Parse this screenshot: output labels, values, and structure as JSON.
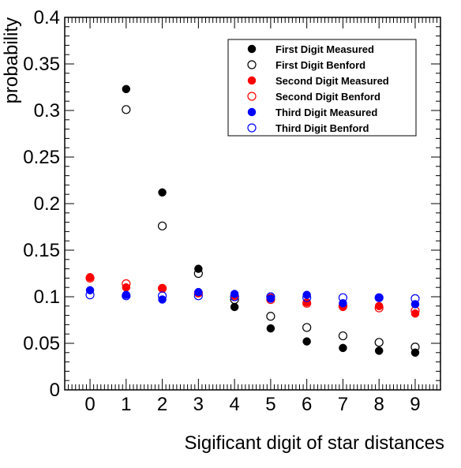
{
  "chart_data": {
    "type": "scatter",
    "title": "",
    "xlabel": "Sigificant digit of star distances",
    "ylabel": "probability",
    "xlim": [
      -0.7,
      9.7
    ],
    "ylim": [
      0,
      0.4
    ],
    "x_ticks": [
      0,
      1,
      2,
      3,
      4,
      5,
      6,
      7,
      8,
      9
    ],
    "y_ticks": [
      0,
      0.05,
      0.1,
      0.15,
      0.2,
      0.25,
      0.3,
      0.35,
      0.4
    ],
    "y_tick_labels": [
      "0",
      "0.05",
      "0.1",
      "0.15",
      "0.2",
      "0.25",
      "0.3",
      "0.35",
      "0.4"
    ],
    "grid": false,
    "legend_position": "top-right",
    "series": [
      {
        "name": "First Digit Measured",
        "color": "#000000",
        "filled": true,
        "x": [
          1,
          2,
          3,
          4,
          5,
          6,
          7,
          8,
          9
        ],
        "y": [
          0.323,
          0.212,
          0.13,
          0.089,
          0.066,
          0.052,
          0.045,
          0.042,
          0.04
        ]
      },
      {
        "name": "First Digit Benford",
        "color": "#000000",
        "filled": false,
        "x": [
          1,
          2,
          3,
          4,
          5,
          6,
          7,
          8,
          9
        ],
        "y": [
          0.301,
          0.176,
          0.125,
          0.097,
          0.079,
          0.067,
          0.058,
          0.051,
          0.046
        ]
      },
      {
        "name": "Second Digit Measured",
        "color": "#ff0000",
        "filled": true,
        "x": [
          0,
          1,
          2,
          3,
          4,
          5,
          6,
          7,
          8,
          9
        ],
        "y": [
          0.121,
          0.11,
          0.109,
          0.104,
          0.101,
          0.099,
          0.094,
          0.089,
          0.09,
          0.082
        ]
      },
      {
        "name": "Second Digit Benford",
        "color": "#ff0000",
        "filled": false,
        "x": [
          0,
          1,
          2,
          3,
          4,
          5,
          6,
          7,
          8,
          9
        ],
        "y": [
          0.12,
          0.114,
          0.109,
          0.104,
          0.1,
          0.097,
          0.093,
          0.09,
          0.088,
          0.085
        ]
      },
      {
        "name": "Third Digit Measured",
        "color": "#0000ff",
        "filled": true,
        "x": [
          0,
          1,
          2,
          3,
          4,
          5,
          6,
          7,
          8,
          9
        ],
        "y": [
          0.107,
          0.102,
          0.097,
          0.105,
          0.103,
          0.098,
          0.102,
          0.093,
          0.099,
          0.092
        ]
      },
      {
        "name": "Third Digit Benford",
        "color": "#0000ff",
        "filled": false,
        "x": [
          0,
          1,
          2,
          3,
          4,
          5,
          6,
          7,
          8,
          9
        ],
        "y": [
          0.102,
          0.101,
          0.101,
          0.101,
          0.1,
          0.1,
          0.099,
          0.099,
          0.099,
          0.098
        ]
      }
    ]
  }
}
